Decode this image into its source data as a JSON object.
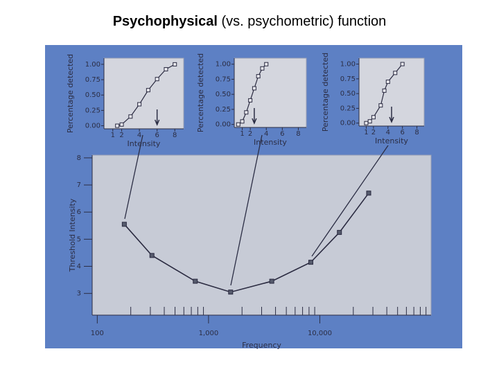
{
  "slide_title": {
    "bold": "Psychophysical",
    "rest": "(vs. psychometric) function"
  },
  "chart_data": [
    {
      "type": "line",
      "xlabel": "Intensity",
      "ylabel": "Percentage detected",
      "x": [
        1.5,
        2,
        3,
        4,
        5,
        6,
        7,
        8
      ],
      "values": [
        0,
        0.02,
        0.15,
        0.35,
        0.58,
        0.76,
        0.92,
        1.0
      ],
      "xlim": [
        0,
        9
      ],
      "xticks": [
        1,
        2,
        4,
        6,
        8
      ],
      "ylim": [
        -0.05,
        1.1
      ],
      "yticks": [
        {
          "value": 0,
          "label": "0.00"
        },
        {
          "value": 0.25,
          "label": "0.25"
        },
        {
          "value": 0.5,
          "label": "0.50"
        },
        {
          "value": 0.75,
          "label": "0.75"
        },
        {
          "value": 1,
          "label": "1.00"
        }
      ],
      "threshold": 6,
      "color": "#2a2a40"
    },
    {
      "type": "line",
      "xlabel": "Intensity",
      "ylabel": "Percentage detected",
      "x": [
        0.5,
        1,
        1.5,
        2,
        2.5,
        3,
        3.5,
        4
      ],
      "values": [
        0,
        0.05,
        0.2,
        0.4,
        0.6,
        0.8,
        0.93,
        1.0
      ],
      "xlim": [
        0,
        9
      ],
      "xticks": [
        1,
        2,
        4,
        6,
        8
      ],
      "ylim": [
        -0.05,
        1.1
      ],
      "yticks": [
        {
          "value": 0,
          "label": "0.00"
        },
        {
          "value": 0.25,
          "label": "0.25"
        },
        {
          "value": 0.5,
          "label": "0.50"
        },
        {
          "value": 0.75,
          "label": "0.75"
        },
        {
          "value": 1,
          "label": "1.00"
        }
      ],
      "threshold": 2.5,
      "color": "#2a2a40"
    },
    {
      "type": "line",
      "xlabel": "Intensity",
      "ylabel": "Percentage detected",
      "x": [
        1,
        1.5,
        2,
        3,
        3.5,
        4,
        5,
        6
      ],
      "values": [
        0,
        0.03,
        0.1,
        0.3,
        0.55,
        0.7,
        0.85,
        1.0
      ],
      "xlim": [
        0,
        9
      ],
      "xticks": [
        1,
        2,
        4,
        6,
        8
      ],
      "ylim": [
        -0.05,
        1.1
      ],
      "yticks": [
        {
          "value": 0,
          "label": "0.00"
        },
        {
          "value": 0.25,
          "label": "0.25"
        },
        {
          "value": 0.5,
          "label": "0.50"
        },
        {
          "value": 0.75,
          "label": "0.75"
        },
        {
          "value": 1,
          "label": "1.00"
        }
      ],
      "threshold": 4.5,
      "color": "#2a2a40"
    },
    {
      "type": "line",
      "xlabel": "Frequency",
      "ylabel": "Threshold Intensity",
      "xscale": "log",
      "x": [
        175,
        310,
        760,
        1580,
        3700,
        8300,
        15000,
        27500
      ],
      "values": [
        5.55,
        4.4,
        3.45,
        3.05,
        3.45,
        4.15,
        5.25,
        6.7
      ],
      "xlim": [
        90,
        100000
      ],
      "xticks": [
        100,
        {
          "value": 1000,
          "label": "1,000"
        },
        {
          "value": 10000,
          "label": "10,000"
        }
      ],
      "x_minor_ticks": [
        200,
        300,
        400,
        500,
        600,
        700,
        800,
        900,
        2000,
        3000,
        4000,
        5000,
        6000,
        7000,
        8000,
        9000,
        20000,
        30000,
        40000,
        50000,
        60000,
        70000,
        80000,
        90000
      ],
      "ylim": [
        2.2,
        8.1
      ],
      "yticks": [
        3,
        4,
        5,
        6,
        7,
        8
      ],
      "color": "#2a2a40"
    }
  ]
}
